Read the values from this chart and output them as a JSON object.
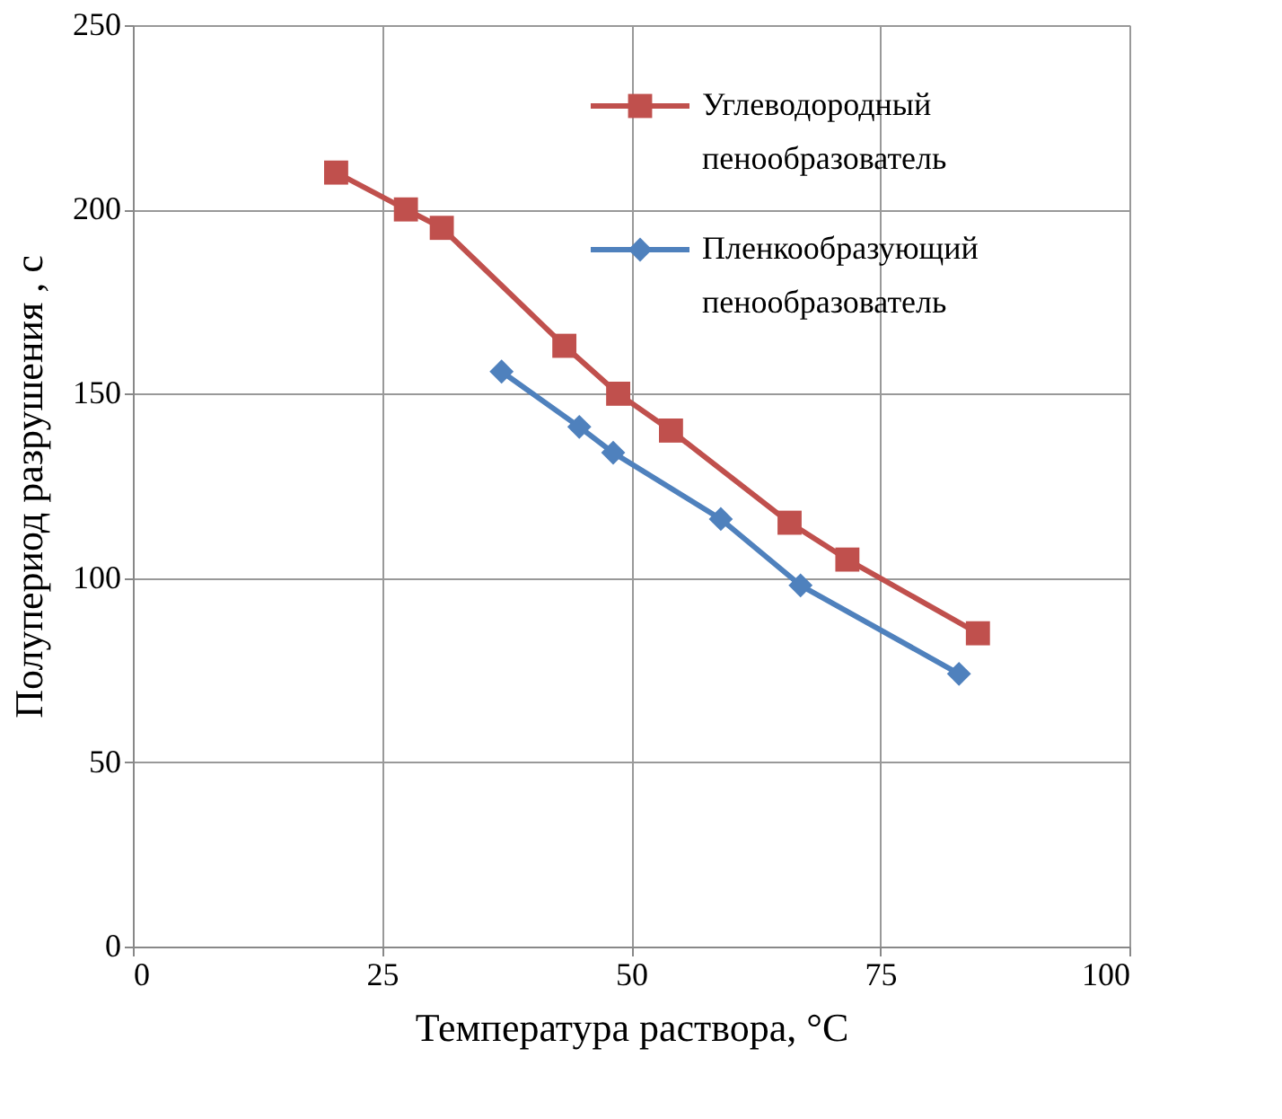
{
  "chart_data": {
    "type": "line",
    "xlabel": "Температура раствора, °C",
    "ylabel": "Полупериод  разрушения , с",
    "xlim": [
      0,
      100
    ],
    "ylim": [
      0,
      250
    ],
    "xticks": [
      0,
      25,
      50,
      75,
      100
    ],
    "yticks": [
      0,
      50,
      100,
      150,
      200,
      250
    ],
    "grid": true,
    "legend": "top right",
    "line_style": "solid",
    "series": [
      {
        "name": "Углеводородный пенообразователь",
        "color": "#c0504d",
        "marker": "square",
        "x": [
          20.4,
          27.4,
          31.0,
          43.3,
          48.7,
          54.0,
          65.9,
          71.7,
          84.8
        ],
        "values": [
          210,
          200,
          195,
          163,
          150,
          140,
          115,
          105,
          85
        ]
      },
      {
        "name": "Пленкообразующий пенообразователь",
        "color": "#4f81bd",
        "marker": "diamond",
        "x": [
          37.0,
          44.8,
          48.2,
          59.0,
          67.0,
          82.9
        ],
        "values": [
          156,
          141,
          134,
          116,
          98,
          74
        ]
      }
    ]
  }
}
